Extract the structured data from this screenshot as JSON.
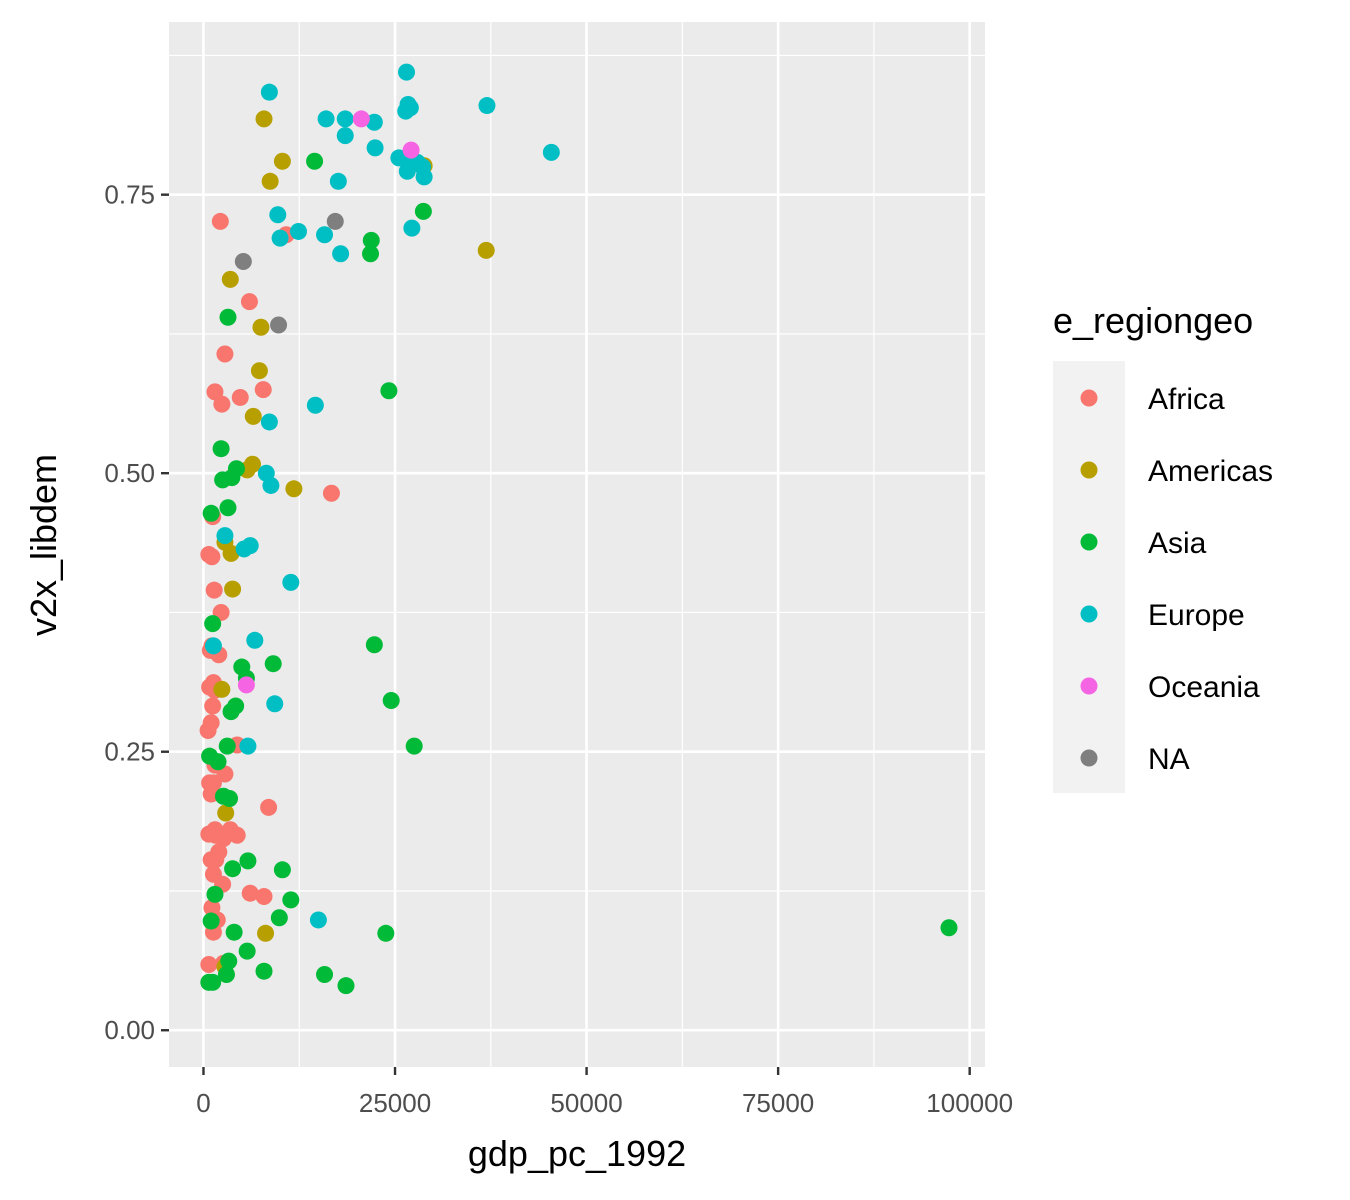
{
  "chart_data": {
    "type": "scatter",
    "xlabel": "gdp_pc_1992",
    "ylabel": "v2x_libdem",
    "xlim": [
      -4500,
      102000
    ],
    "ylim": [
      -0.033,
      0.905
    ],
    "x_ticks": [
      0,
      25000,
      50000,
      75000,
      100000
    ],
    "x_tick_labels": [
      "0",
      "25000",
      "50000",
      "75000",
      "100000"
    ],
    "y_ticks": [
      0.0,
      0.25,
      0.5,
      0.75
    ],
    "y_tick_labels": [
      "0.00",
      "0.25",
      "0.50",
      "0.75"
    ],
    "grid": true,
    "legend": {
      "title": "e_regiongeo",
      "placement": "right",
      "entries": [
        {
          "name": "Africa",
          "color": "#F8766D"
        },
        {
          "name": "Americas",
          "color": "#B79F00"
        },
        {
          "name": "Asia",
          "color": "#00BA38"
        },
        {
          "name": "Europe",
          "color": "#00BFC4"
        },
        {
          "name": "Oceania",
          "color": "#F564E3"
        },
        {
          "name": "NA",
          "color": "#7F7F7F"
        }
      ]
    },
    "series": [
      {
        "name": "Africa",
        "color": "#F8766D",
        "points": [
          [
            2200,
            0.726
          ],
          [
            10800,
            0.714
          ],
          [
            6000,
            0.654
          ],
          [
            2800,
            0.607
          ],
          [
            1500,
            0.573
          ],
          [
            7800,
            0.575
          ],
          [
            4800,
            0.568
          ],
          [
            2400,
            0.562
          ],
          [
            16700,
            0.482
          ],
          [
            1200,
            0.461
          ],
          [
            700,
            0.427
          ],
          [
            1100,
            0.425
          ],
          [
            1400,
            0.395
          ],
          [
            2300,
            0.375
          ],
          [
            1100,
            0.345
          ],
          [
            900,
            0.341
          ],
          [
            2000,
            0.337
          ],
          [
            1300,
            0.312
          ],
          [
            800,
            0.308
          ],
          [
            1500,
            0.305
          ],
          [
            1200,
            0.291
          ],
          [
            1000,
            0.276
          ],
          [
            600,
            0.269
          ],
          [
            4400,
            0.256
          ],
          [
            1500,
            0.238
          ],
          [
            2800,
            0.23
          ],
          [
            800,
            0.222
          ],
          [
            1300,
            0.222
          ],
          [
            1000,
            0.212
          ],
          [
            8500,
            0.2
          ],
          [
            1500,
            0.18
          ],
          [
            3500,
            0.18
          ],
          [
            4400,
            0.175
          ],
          [
            700,
            0.176
          ],
          [
            1600,
            0.175
          ],
          [
            2600,
            0.172
          ],
          [
            2000,
            0.16
          ],
          [
            1000,
            0.153
          ],
          [
            1600,
            0.153
          ],
          [
            1300,
            0.14
          ],
          [
            2500,
            0.131
          ],
          [
            6100,
            0.123
          ],
          [
            7900,
            0.12
          ],
          [
            1100,
            0.11
          ],
          [
            1800,
            0.099
          ],
          [
            1300,
            0.088
          ],
          [
            700,
            0.059
          ],
          [
            2600,
            0.06
          ]
        ]
      },
      {
        "name": "Americas",
        "color": "#B79F00",
        "points": [
          [
            7900,
            0.818
          ],
          [
            10300,
            0.78
          ],
          [
            8700,
            0.762
          ],
          [
            28800,
            0.776
          ],
          [
            36900,
            0.7
          ],
          [
            3500,
            0.674
          ],
          [
            7500,
            0.631
          ],
          [
            7300,
            0.592
          ],
          [
            6500,
            0.551
          ],
          [
            6400,
            0.508
          ],
          [
            5700,
            0.503
          ],
          [
            11800,
            0.486
          ],
          [
            2800,
            0.438
          ],
          [
            3600,
            0.428
          ],
          [
            3800,
            0.396
          ],
          [
            2400,
            0.306
          ],
          [
            2900,
            0.195
          ],
          [
            8100,
            0.087
          ],
          [
            2800,
            0.057
          ]
        ]
      },
      {
        "name": "Asia",
        "color": "#00BA38",
        "points": [
          [
            14500,
            0.78
          ],
          [
            28700,
            0.735
          ],
          [
            21900,
            0.709
          ],
          [
            21800,
            0.697
          ],
          [
            3200,
            0.64
          ],
          [
            24200,
            0.574
          ],
          [
            2300,
            0.522
          ],
          [
            4300,
            0.504
          ],
          [
            3700,
            0.496
          ],
          [
            2500,
            0.494
          ],
          [
            3200,
            0.469
          ],
          [
            1000,
            0.464
          ],
          [
            1200,
            0.365
          ],
          [
            22300,
            0.346
          ],
          [
            5000,
            0.326
          ],
          [
            9100,
            0.329
          ],
          [
            5600,
            0.316
          ],
          [
            24500,
            0.296
          ],
          [
            4200,
            0.291
          ],
          [
            3600,
            0.286
          ],
          [
            27500,
            0.255
          ],
          [
            3100,
            0.255
          ],
          [
            800,
            0.246
          ],
          [
            1900,
            0.241
          ],
          [
            2600,
            0.21
          ],
          [
            3400,
            0.208
          ],
          [
            5800,
            0.152
          ],
          [
            10300,
            0.144
          ],
          [
            3800,
            0.145
          ],
          [
            11400,
            0.117
          ],
          [
            1500,
            0.122
          ],
          [
            9900,
            0.101
          ],
          [
            1000,
            0.098
          ],
          [
            97300,
            0.092
          ],
          [
            23800,
            0.087
          ],
          [
            4000,
            0.088
          ],
          [
            5700,
            0.071
          ],
          [
            3300,
            0.062
          ],
          [
            7900,
            0.053
          ],
          [
            15800,
            0.05
          ],
          [
            3000,
            0.05
          ],
          [
            700,
            0.043
          ],
          [
            1200,
            0.043
          ],
          [
            18600,
            0.04
          ]
        ]
      },
      {
        "name": "Europe",
        "color": "#00BFC4",
        "points": [
          [
            26500,
            0.86
          ],
          [
            8600,
            0.842
          ],
          [
            26700,
            0.831
          ],
          [
            37000,
            0.83
          ],
          [
            26400,
            0.825
          ],
          [
            27000,
            0.828
          ],
          [
            16000,
            0.818
          ],
          [
            18500,
            0.818
          ],
          [
            22300,
            0.815
          ],
          [
            18500,
            0.803
          ],
          [
            22400,
            0.792
          ],
          [
            45400,
            0.788
          ],
          [
            25500,
            0.783
          ],
          [
            26500,
            0.783
          ],
          [
            27000,
            0.778
          ],
          [
            26600,
            0.771
          ],
          [
            27900,
            0.779
          ],
          [
            28600,
            0.775
          ],
          [
            17600,
            0.762
          ],
          [
            28800,
            0.766
          ],
          [
            9700,
            0.732
          ],
          [
            27200,
            0.72
          ],
          [
            12400,
            0.717
          ],
          [
            15800,
            0.714
          ],
          [
            10000,
            0.711
          ],
          [
            17900,
            0.697
          ],
          [
            8600,
            0.546
          ],
          [
            14600,
            0.561
          ],
          [
            8200,
            0.5
          ],
          [
            8800,
            0.489
          ],
          [
            2800,
            0.444
          ],
          [
            6100,
            0.435
          ],
          [
            5300,
            0.432
          ],
          [
            11400,
            0.402
          ],
          [
            6700,
            0.35
          ],
          [
            1300,
            0.345
          ],
          [
            9300,
            0.293
          ],
          [
            5800,
            0.255
          ],
          [
            15000,
            0.099
          ]
        ]
      },
      {
        "name": "Oceania",
        "color": "#F564E3",
        "points": [
          [
            20600,
            0.818
          ],
          [
            27100,
            0.79
          ],
          [
            5600,
            0.31
          ]
        ]
      },
      {
        "name": "NA",
        "color": "#7F7F7F",
        "points": [
          [
            17200,
            0.726
          ],
          [
            5200,
            0.69
          ],
          [
            9800,
            0.633
          ]
        ]
      }
    ]
  }
}
